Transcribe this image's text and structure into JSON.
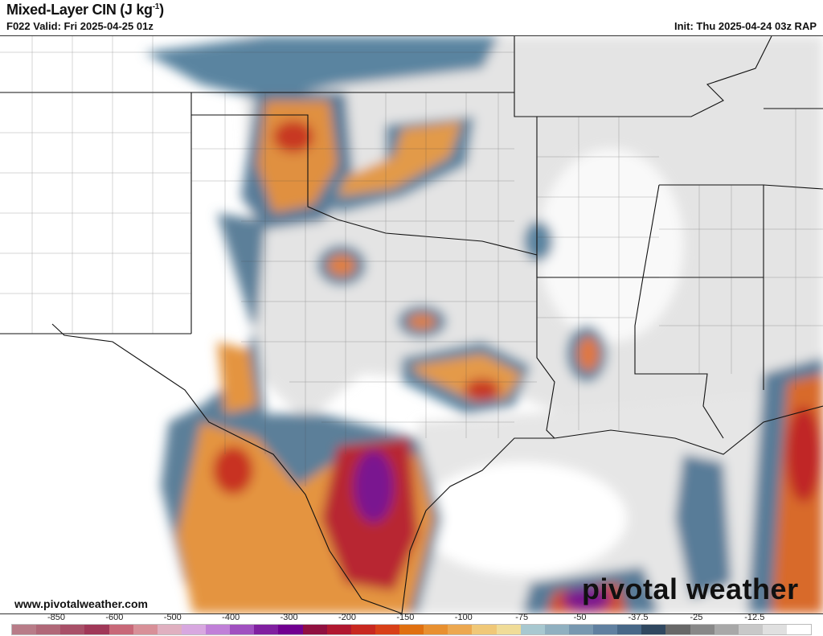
{
  "header": {
    "title": "Mixed-Layer CIN (J kg",
    "title_unit_sup": "-1",
    "title_close": ")",
    "valid": "F022 Valid: Fri 2025-04-25 01z",
    "init": "Init: Thu 2025-04-24 03z RAP"
  },
  "footer": {
    "website": "www.pivotalweather.com",
    "logo": "pivotal weather"
  },
  "colorbar": {
    "labels": [
      "-850",
      "-600",
      "-500",
      "-400",
      "-300",
      "-200",
      "-150",
      "-100",
      "-75",
      "-50",
      "-37.5",
      "-25",
      "-12.5"
    ],
    "colors": [
      "#b87c88",
      "#b06878",
      "#a85068",
      "#a03858",
      "#c86878",
      "#d89098",
      "#e0b0c0",
      "#d8a8e0",
      "#c080d8",
      "#a050c0",
      "#8020a0",
      "#700090",
      "#901040",
      "#b01830",
      "#c82820",
      "#d84018",
      "#e07010",
      "#e89030",
      "#eca850",
      "#f0c878",
      "#f0dc98",
      "#a8c8d0",
      "#90b0c0",
      "#7898b0",
      "#6080a0",
      "#486888",
      "#304860",
      "#686868",
      "#888888",
      "#a8a8a8",
      "#c8c8c8",
      "#e0e0e0",
      "#ffffff"
    ]
  },
  "map": {
    "field": "Mixed-Layer CIN",
    "region": "Southern Plains / Texas"
  }
}
